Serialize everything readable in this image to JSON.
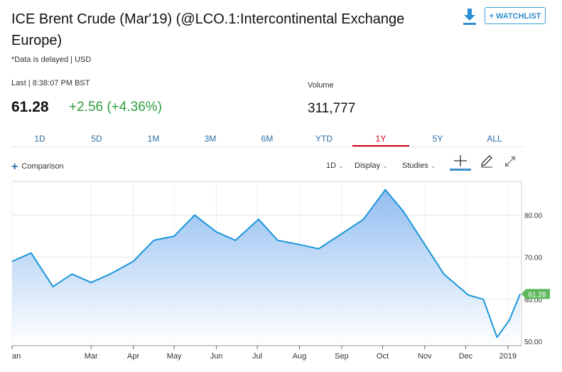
{
  "header": {
    "title": "ICE Brent Crude (Mar'19) (@LCO.1:Intercontinental Exchange Europe)",
    "delayed_note": "*Data is delayed | USD",
    "watchlist_label": "+ WATCHLIST",
    "download_icon": "download-icon"
  },
  "quote": {
    "last_label": "Last | 8:38:07 PM BST",
    "price": "61.28",
    "change": "+2.56 (+4.36%)",
    "volume_label": "Volume",
    "volume_value": "311,777",
    "change_color": "#2e9e3e"
  },
  "tabs": [
    {
      "label": "1D"
    },
    {
      "label": "5D"
    },
    {
      "label": "1M"
    },
    {
      "label": "3M"
    },
    {
      "label": "6M"
    },
    {
      "label": "YTD"
    },
    {
      "label": "1Y",
      "active": true
    },
    {
      "label": "5Y"
    },
    {
      "label": "ALL"
    }
  ],
  "toolbar": {
    "comparison_label": "Comparison",
    "interval_label": "1D",
    "display_label": "Display",
    "studies_label": "Studies",
    "tools": [
      "crosshair-icon",
      "pencil-icon",
      "expand-icon"
    ]
  },
  "chart_data": {
    "type": "area",
    "x": [
      "2018-01-02",
      "2018-01-16",
      "2018-02-01",
      "2018-02-15",
      "2018-03-01",
      "2018-03-15",
      "2018-04-01",
      "2018-04-16",
      "2018-05-01",
      "2018-05-16",
      "2018-06-01",
      "2018-06-15",
      "2018-07-02",
      "2018-07-16",
      "2018-08-01",
      "2018-08-15",
      "2018-09-03",
      "2018-09-17",
      "2018-10-03",
      "2018-10-16",
      "2018-11-01",
      "2018-11-15",
      "2018-12-03",
      "2018-12-14",
      "2018-12-24",
      "2019-01-02",
      "2019-01-10"
    ],
    "values": [
      69,
      71,
      63,
      66,
      64,
      66,
      69,
      74,
      75,
      80,
      76,
      74,
      79,
      74,
      73,
      72,
      76,
      79,
      86,
      81,
      73,
      66,
      61,
      60,
      51,
      55,
      61.28
    ],
    "xtick_labels": [
      "an",
      "Mar",
      "Apr",
      "May",
      "Jun",
      "Jul",
      "Aug",
      "Sep",
      "Oct",
      "Nov",
      "Dec",
      "2019"
    ],
    "ytick_labels": [
      "50.00",
      "60.00",
      "70.00",
      "80.00"
    ],
    "ylim": [
      49,
      88
    ],
    "last_value_label": "61.28",
    "line_color": "#1a96d9",
    "fill_color_top": "#8cbaf0",
    "last_badge_color": "#5fb85f",
    "grid": true
  }
}
